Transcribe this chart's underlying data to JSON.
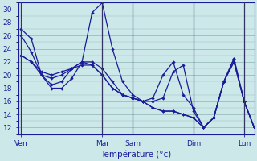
{
  "background_color": "#cce8e8",
  "grid_color": "#99bbbb",
  "line_color": "#1a1a9a",
  "xlabel": "Température (°c)",
  "ylim": [
    11,
    31
  ],
  "yticks": [
    12,
    14,
    16,
    18,
    20,
    22,
    24,
    26,
    28,
    30
  ],
  "day_labels": [
    "Ven",
    "Mar",
    "Sam",
    "Dim",
    "Lun"
  ],
  "day_positions": [
    0,
    8,
    11,
    17,
    22
  ],
  "xlim": [
    -0.3,
    23
  ],
  "npoints": 23,
  "series": [
    [
      27,
      25.5,
      20,
      18,
      18,
      19.5,
      22,
      29.5,
      31,
      24,
      19,
      17,
      16,
      16,
      16.5,
      20.5,
      21.5,
      14.5,
      12,
      13.5,
      19,
      22.5,
      16,
      12
    ],
    [
      26,
      23.5,
      20,
      18.5,
      19,
      21,
      22,
      22,
      21,
      19,
      17,
      16.5,
      16,
      16.5,
      20,
      22,
      17,
      15,
      12,
      13.5,
      19,
      22.5,
      16,
      12
    ],
    [
      23,
      22,
      20,
      19.5,
      20,
      21,
      22,
      21.5,
      20,
      18,
      17,
      16.5,
      16,
      15,
      14.5,
      14.5,
      14,
      13.5,
      12,
      13.5,
      19,
      22,
      16,
      12
    ],
    [
      23,
      22,
      20.5,
      20,
      20.5,
      21,
      21.5,
      21.5,
      20,
      18,
      17,
      16.5,
      16,
      15,
      14.5,
      14.5,
      14,
      13.5,
      12,
      13.5,
      19,
      22,
      16,
      12
    ]
  ]
}
